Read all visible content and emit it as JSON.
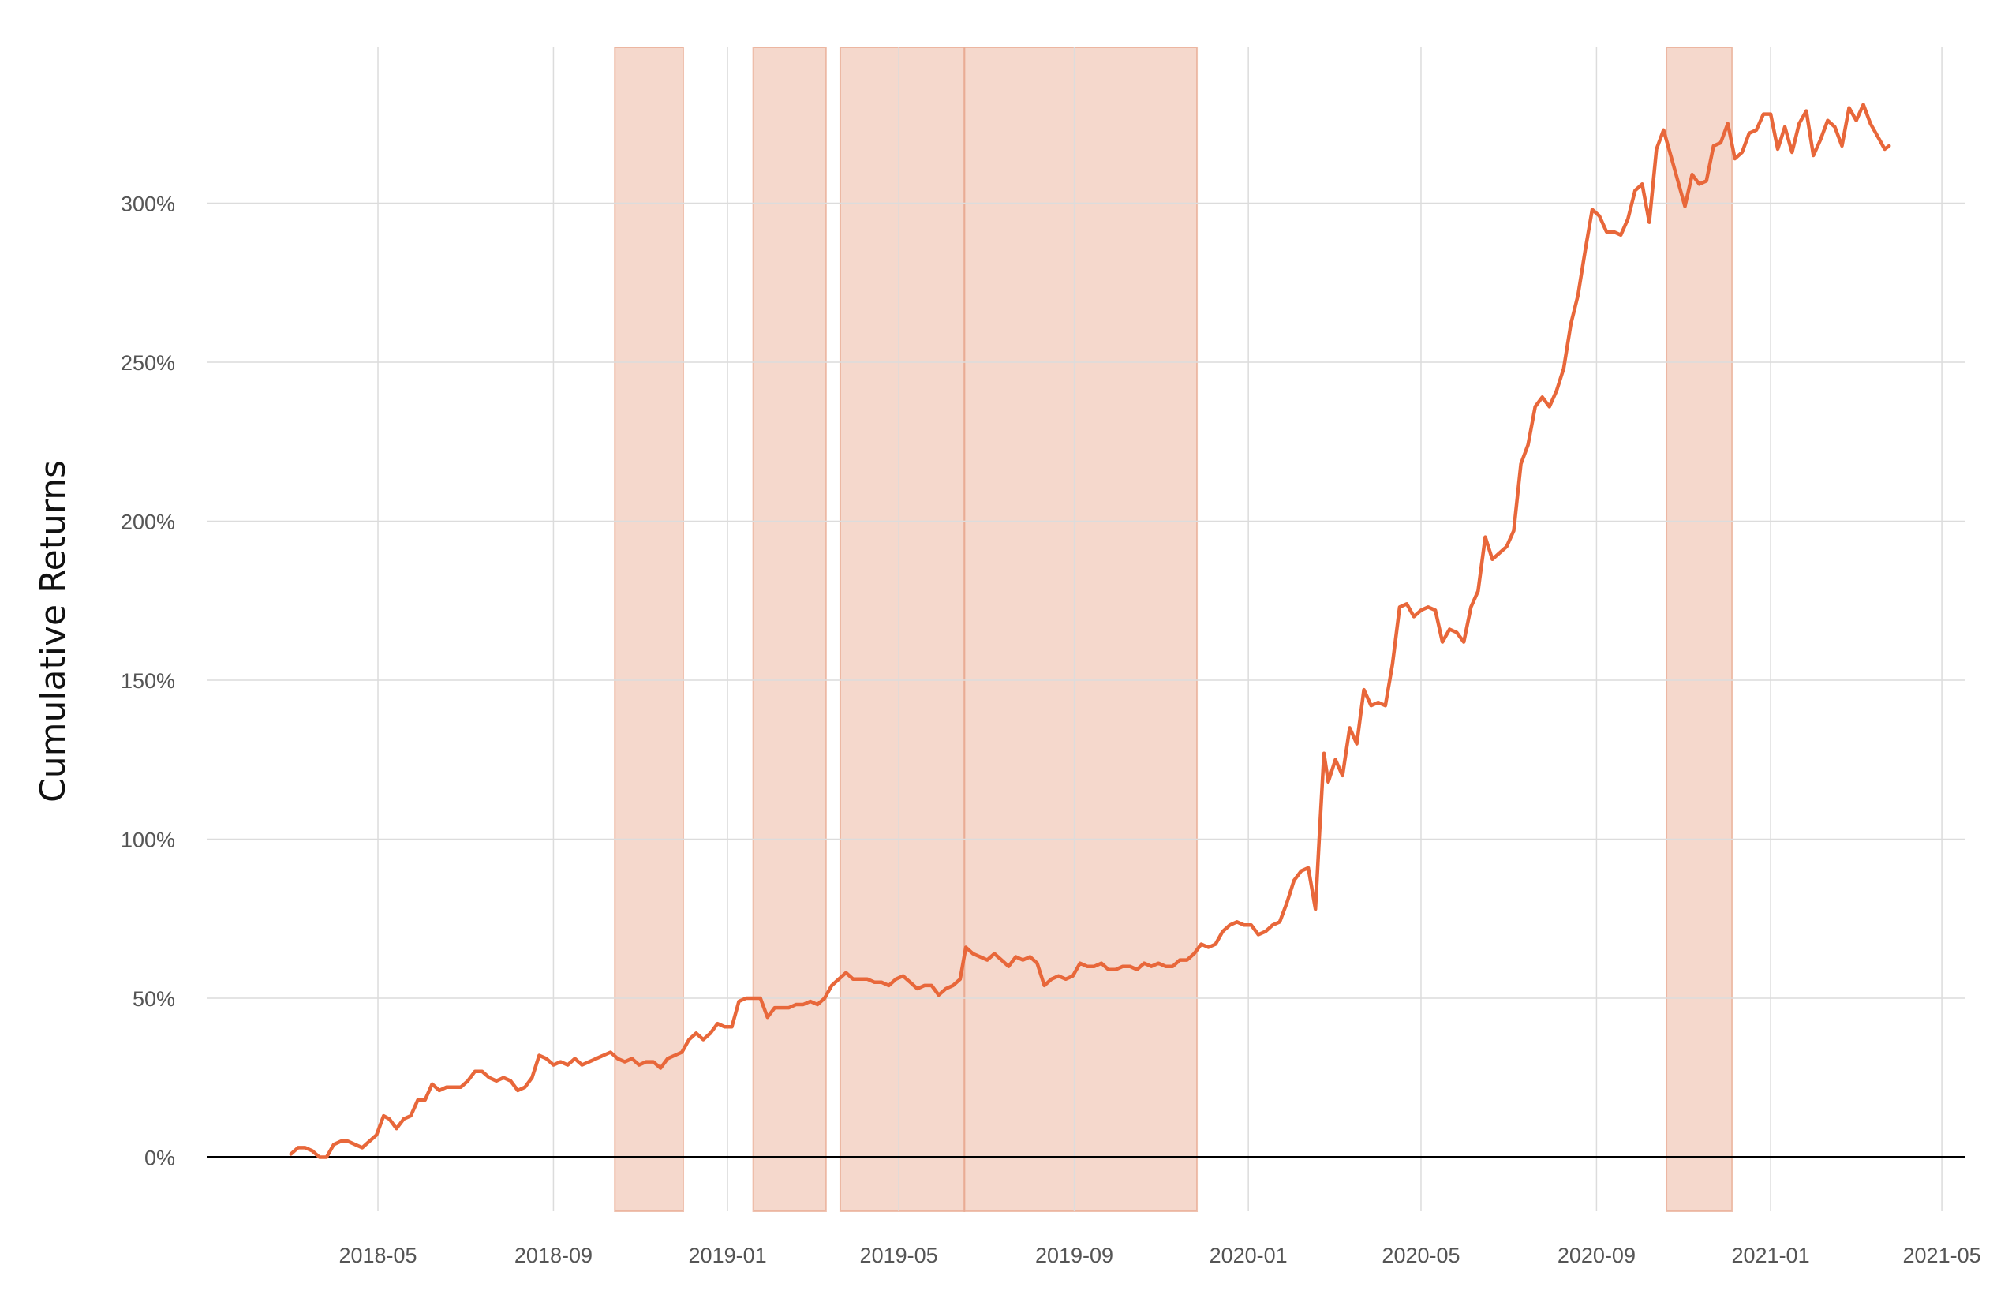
{
  "chart_data": {
    "type": "line",
    "title": "",
    "xlabel": "",
    "ylabel": "Cumulative Returns",
    "x_tick_labels": [
      "2018-05",
      "2018-09",
      "2019-01",
      "2019-05",
      "2019-09",
      "2020-01",
      "2020-05",
      "2020-09",
      "2021-01",
      "2021-05"
    ],
    "x_ticks": [
      "2018-05-01",
      "2018-09-01",
      "2019-01-01",
      "2019-05-01",
      "2019-09-01",
      "2020-01-01",
      "2020-05-01",
      "2020-09-01",
      "2021-01-01",
      "2021-05-01"
    ],
    "y_tick_labels": [
      "0%",
      "50%",
      "100%",
      "150%",
      "200%",
      "250%",
      "300%"
    ],
    "y_ticks": [
      0,
      50,
      100,
      150,
      200,
      250,
      300
    ],
    "xlim": [
      "2018-01-01",
      "2021-05-17"
    ],
    "ylim": [
      -17,
      349
    ],
    "grid": true,
    "baseline": 0,
    "line_color": "#e8673a",
    "shade_color": "#e8a88e",
    "shaded_periods": [
      [
        "2018-10-14",
        "2018-12-01"
      ],
      [
        "2019-01-19",
        "2019-03-11"
      ],
      [
        "2019-03-21",
        "2019-06-16"
      ],
      [
        "2019-06-16",
        "2019-11-26"
      ],
      [
        "2020-10-20",
        "2020-12-05"
      ]
    ],
    "series": [
      {
        "values": [
          [
            "2018-03-01",
            1
          ],
          [
            "2018-03-06",
            3
          ],
          [
            "2018-03-11",
            3
          ],
          [
            "2018-03-16",
            2
          ],
          [
            "2018-03-21",
            0
          ],
          [
            "2018-03-26",
            0
          ],
          [
            "2018-03-31",
            4
          ],
          [
            "2018-04-05",
            5
          ],
          [
            "2018-04-10",
            5
          ],
          [
            "2018-04-15",
            4
          ],
          [
            "2018-04-20",
            3
          ],
          [
            "2018-04-25",
            5
          ],
          [
            "2018-04-30",
            7
          ],
          [
            "2018-05-05",
            13
          ],
          [
            "2018-05-09",
            12
          ],
          [
            "2018-05-14",
            9
          ],
          [
            "2018-05-19",
            12
          ],
          [
            "2018-05-24",
            13
          ],
          [
            "2018-05-29",
            18
          ],
          [
            "2018-06-03",
            18
          ],
          [
            "2018-06-08",
            23
          ],
          [
            "2018-06-13",
            21
          ],
          [
            "2018-06-18",
            22
          ],
          [
            "2018-06-23",
            22
          ],
          [
            "2018-06-28",
            22
          ],
          [
            "2018-07-03",
            24
          ],
          [
            "2018-07-08",
            27
          ],
          [
            "2018-07-13",
            27
          ],
          [
            "2018-07-18",
            25
          ],
          [
            "2018-07-23",
            24
          ],
          [
            "2018-07-28",
            25
          ],
          [
            "2018-08-02",
            24
          ],
          [
            "2018-08-07",
            21
          ],
          [
            "2018-08-12",
            22
          ],
          [
            "2018-08-17",
            25
          ],
          [
            "2018-08-22",
            32
          ],
          [
            "2018-08-27",
            31
          ],
          [
            "2018-09-01",
            29
          ],
          [
            "2018-09-06",
            30
          ],
          [
            "2018-09-11",
            29
          ],
          [
            "2018-09-16",
            31
          ],
          [
            "2018-09-21",
            29
          ],
          [
            "2018-09-26",
            30
          ],
          [
            "2018-10-01",
            31
          ],
          [
            "2018-10-06",
            32
          ],
          [
            "2018-10-11",
            33
          ],
          [
            "2018-10-16",
            31
          ],
          [
            "2018-10-21",
            30
          ],
          [
            "2018-10-26",
            31
          ],
          [
            "2018-10-31",
            29
          ],
          [
            "2018-11-05",
            30
          ],
          [
            "2018-11-10",
            30
          ],
          [
            "2018-11-15",
            28
          ],
          [
            "2018-11-20",
            31
          ],
          [
            "2018-11-25",
            32
          ],
          [
            "2018-11-30",
            33
          ],
          [
            "2018-12-05",
            37
          ],
          [
            "2018-12-10",
            39
          ],
          [
            "2018-12-15",
            37
          ],
          [
            "2018-12-20",
            39
          ],
          [
            "2018-12-25",
            42
          ],
          [
            "2018-12-30",
            41
          ],
          [
            "2019-01-04",
            41
          ],
          [
            "2019-01-09",
            49
          ],
          [
            "2019-01-14",
            50
          ],
          [
            "2019-01-19",
            50
          ],
          [
            "2019-01-24",
            50
          ],
          [
            "2019-01-29",
            44
          ],
          [
            "2019-02-03",
            47
          ],
          [
            "2019-02-08",
            47
          ],
          [
            "2019-02-13",
            47
          ],
          [
            "2019-02-18",
            48
          ],
          [
            "2019-02-23",
            48
          ],
          [
            "2019-02-28",
            49
          ],
          [
            "2019-03-05",
            48
          ],
          [
            "2019-03-10",
            50
          ],
          [
            "2019-03-15",
            54
          ],
          [
            "2019-03-20",
            56
          ],
          [
            "2019-03-25",
            58
          ],
          [
            "2019-03-30",
            56
          ],
          [
            "2019-04-04",
            56
          ],
          [
            "2019-04-09",
            56
          ],
          [
            "2019-04-14",
            55
          ],
          [
            "2019-04-19",
            55
          ],
          [
            "2019-04-24",
            54
          ],
          [
            "2019-04-29",
            56
          ],
          [
            "2019-05-04",
            57
          ],
          [
            "2019-05-09",
            55
          ],
          [
            "2019-05-14",
            53
          ],
          [
            "2019-05-19",
            54
          ],
          [
            "2019-05-24",
            54
          ],
          [
            "2019-05-29",
            51
          ],
          [
            "2019-06-03",
            53
          ],
          [
            "2019-06-08",
            54
          ],
          [
            "2019-06-13",
            56
          ],
          [
            "2019-06-17",
            66
          ],
          [
            "2019-06-22",
            64
          ],
          [
            "2019-06-27",
            63
          ],
          [
            "2019-07-02",
            62
          ],
          [
            "2019-07-07",
            64
          ],
          [
            "2019-07-12",
            62
          ],
          [
            "2019-07-17",
            60
          ],
          [
            "2019-07-22",
            63
          ],
          [
            "2019-07-27",
            62
          ],
          [
            "2019-08-01",
            63
          ],
          [
            "2019-08-06",
            61
          ],
          [
            "2019-08-11",
            54
          ],
          [
            "2019-08-16",
            56
          ],
          [
            "2019-08-21",
            57
          ],
          [
            "2019-08-26",
            56
          ],
          [
            "2019-08-31",
            57
          ],
          [
            "2019-09-05",
            61
          ],
          [
            "2019-09-10",
            60
          ],
          [
            "2019-09-15",
            60
          ],
          [
            "2019-09-20",
            61
          ],
          [
            "2019-09-25",
            59
          ],
          [
            "2019-09-30",
            59
          ],
          [
            "2019-10-05",
            60
          ],
          [
            "2019-10-10",
            60
          ],
          [
            "2019-10-15",
            59
          ],
          [
            "2019-10-20",
            61
          ],
          [
            "2019-10-25",
            60
          ],
          [
            "2019-10-30",
            61
          ],
          [
            "2019-11-04",
            60
          ],
          [
            "2019-11-09",
            60
          ],
          [
            "2019-11-14",
            62
          ],
          [
            "2019-11-19",
            62
          ],
          [
            "2019-11-24",
            64
          ],
          [
            "2019-11-29",
            67
          ],
          [
            "2019-12-04",
            66
          ],
          [
            "2019-12-09",
            67
          ],
          [
            "2019-12-14",
            71
          ],
          [
            "2019-12-19",
            73
          ],
          [
            "2019-12-24",
            74
          ],
          [
            "2019-12-29",
            73
          ],
          [
            "2020-01-03",
            73
          ],
          [
            "2020-01-08",
            70
          ],
          [
            "2020-01-13",
            71
          ],
          [
            "2020-01-18",
            73
          ],
          [
            "2020-01-23",
            74
          ],
          [
            "2020-01-28",
            80
          ],
          [
            "2020-02-02",
            87
          ],
          [
            "2020-02-07",
            90
          ],
          [
            "2020-02-12",
            91
          ],
          [
            "2020-02-17",
            78
          ],
          [
            "2020-02-20",
            103
          ],
          [
            "2020-02-23",
            127
          ],
          [
            "2020-02-26",
            118
          ],
          [
            "2020-03-02",
            125
          ],
          [
            "2020-03-07",
            120
          ],
          [
            "2020-03-12",
            135
          ],
          [
            "2020-03-17",
            130
          ],
          [
            "2020-03-22",
            147
          ],
          [
            "2020-03-27",
            142
          ],
          [
            "2020-04-01",
            143
          ],
          [
            "2020-04-06",
            142
          ],
          [
            "2020-04-11",
            155
          ],
          [
            "2020-04-16",
            173
          ],
          [
            "2020-04-21",
            174
          ],
          [
            "2020-04-26",
            170
          ],
          [
            "2020-05-01",
            172
          ],
          [
            "2020-05-06",
            173
          ],
          [
            "2020-05-11",
            172
          ],
          [
            "2020-05-16",
            162
          ],
          [
            "2020-05-21",
            166
          ],
          [
            "2020-05-26",
            165
          ],
          [
            "2020-05-31",
            162
          ],
          [
            "2020-06-05",
            173
          ],
          [
            "2020-06-10",
            178
          ],
          [
            "2020-06-15",
            195
          ],
          [
            "2020-06-20",
            188
          ],
          [
            "2020-06-25",
            190
          ],
          [
            "2020-06-30",
            192
          ],
          [
            "2020-07-05",
            197
          ],
          [
            "2020-07-10",
            218
          ],
          [
            "2020-07-15",
            224
          ],
          [
            "2020-07-20",
            236
          ],
          [
            "2020-07-25",
            239
          ],
          [
            "2020-07-30",
            236
          ],
          [
            "2020-08-04",
            241
          ],
          [
            "2020-08-09",
            248
          ],
          [
            "2020-08-14",
            262
          ],
          [
            "2020-08-19",
            271
          ],
          [
            "2020-08-24",
            285
          ],
          [
            "2020-08-29",
            298
          ],
          [
            "2020-09-03",
            296
          ],
          [
            "2020-09-08",
            291
          ],
          [
            "2020-09-13",
            291
          ],
          [
            "2020-09-18",
            290
          ],
          [
            "2020-09-23",
            295
          ],
          [
            "2020-09-28",
            304
          ],
          [
            "2020-10-03",
            306
          ],
          [
            "2020-10-08",
            294
          ],
          [
            "2020-10-13",
            317
          ],
          [
            "2020-10-18",
            323
          ],
          [
            "2020-10-23",
            315
          ],
          [
            "2020-10-28",
            307
          ],
          [
            "2020-11-02",
            299
          ],
          [
            "2020-11-07",
            309
          ],
          [
            "2020-11-12",
            306
          ],
          [
            "2020-11-17",
            307
          ],
          [
            "2020-11-22",
            318
          ],
          [
            "2020-11-27",
            319
          ],
          [
            "2020-12-02",
            325
          ],
          [
            "2020-12-07",
            314
          ],
          [
            "2020-12-12",
            316
          ],
          [
            "2020-12-17",
            322
          ],
          [
            "2020-12-22",
            323
          ],
          [
            "2020-12-27",
            328
          ],
          [
            "2021-01-01",
            328
          ],
          [
            "2021-01-06",
            317
          ],
          [
            "2021-01-11",
            324
          ],
          [
            "2021-01-16",
            316
          ],
          [
            "2021-01-21",
            325
          ],
          [
            "2021-01-26",
            329
          ],
          [
            "2021-01-31",
            315
          ],
          [
            "2021-02-05",
            320
          ],
          [
            "2021-02-10",
            326
          ],
          [
            "2021-02-15",
            324
          ],
          [
            "2021-02-20",
            318
          ],
          [
            "2021-02-25",
            330
          ],
          [
            "2021-03-02",
            326
          ],
          [
            "2021-03-07",
            331
          ],
          [
            "2021-03-12",
            325
          ],
          [
            "2021-03-17",
            321
          ],
          [
            "2021-03-22",
            317
          ],
          [
            "2021-03-25",
            318
          ]
        ]
      }
    ]
  }
}
